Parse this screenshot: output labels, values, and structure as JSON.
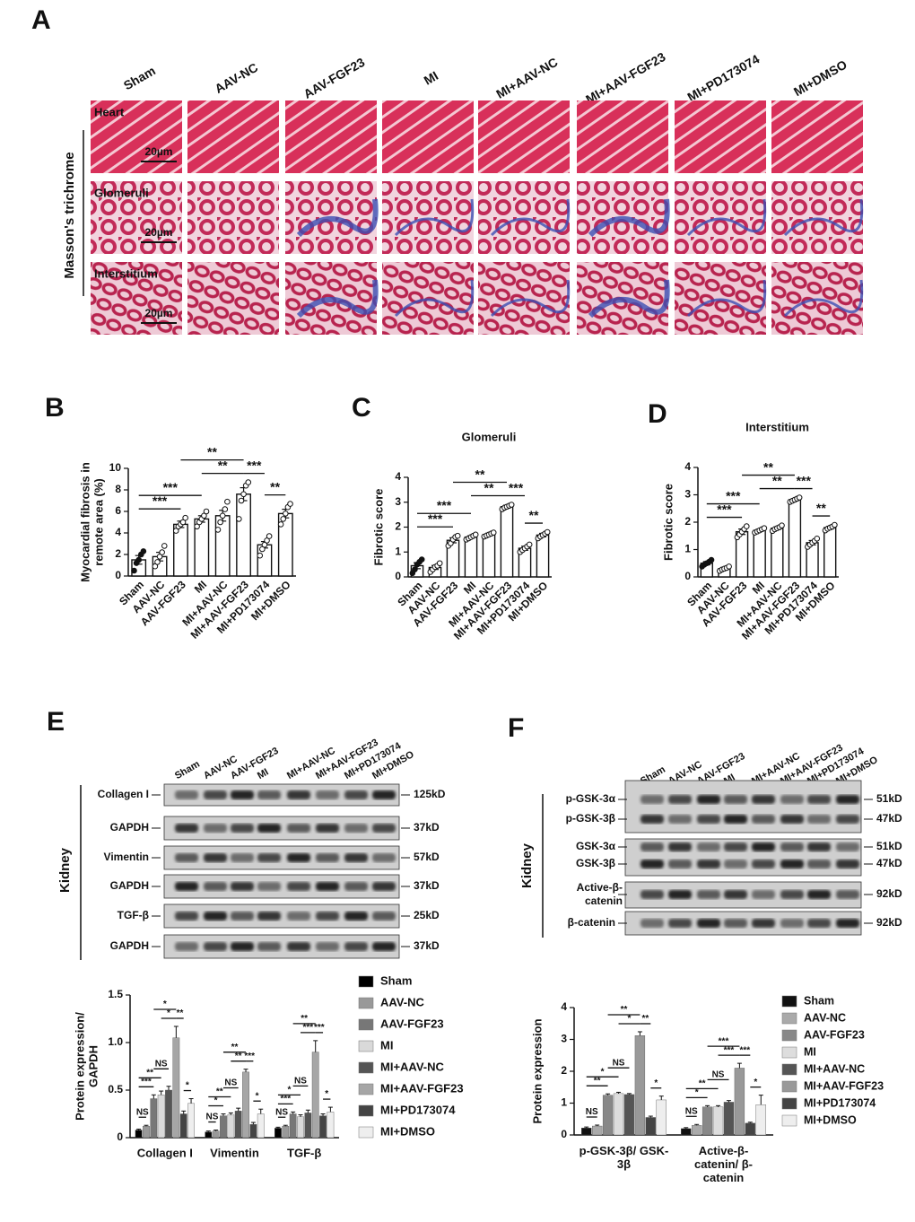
{
  "panel_labels": [
    "A",
    "B",
    "C",
    "D",
    "E",
    "F"
  ],
  "histology": {
    "groups": [
      "Sham",
      "AAV-NC",
      "AAV-FGF23",
      "MI",
      "MI+AAV-NC",
      "MI+AAV-FGF23",
      "MI+PD173074",
      "MI+DMSO"
    ],
    "rows": [
      "Heart",
      "Glomeruli",
      "Interstitium"
    ],
    "stain_label": "Masson's trichrome",
    "scale_bar": "20µm"
  },
  "blot_e": {
    "groups": [
      "Sham",
      "AAV-NC",
      "AAV-FGF23",
      "MI",
      "MI+AAV-NC",
      "MI+AAV-FGF23",
      "MI+PD173074",
      "MI+DMSO"
    ],
    "tissue": "Kidney",
    "rows": [
      {
        "name": "Collagen I",
        "size": "125kD"
      },
      {
        "name": "GAPDH",
        "size": "37kD"
      },
      {
        "name": "Vimentin",
        "size": "57kD"
      },
      {
        "name": "GAPDH",
        "size": "37kD"
      },
      {
        "name": "TGF-β",
        "size": "25kD"
      },
      {
        "name": "GAPDH",
        "size": "37kD"
      }
    ]
  },
  "blot_f": {
    "groups": [
      "Sham",
      "AAV-NC",
      "AAV-FGF23",
      "MI",
      "MI+AAV-NC",
      "MI+AAV-FGF23",
      "MI+PD173074",
      "MI+DMSO"
    ],
    "tissue": "Kidney",
    "rows": [
      {
        "name": "p-GSK-3α",
        "size": "51kD"
      },
      {
        "name": "p-GSK-3β",
        "size": "47kD"
      },
      {
        "name": "GSK-3α",
        "size": "51kD"
      },
      {
        "name": "GSK-3β",
        "size": "47kD"
      },
      {
        "name": "Active-β-catenin",
        "size": "92kD"
      },
      {
        "name": "β-catenin",
        "size": "92kD"
      }
    ]
  },
  "chart_data": [
    {
      "type": "bar",
      "ylabel": [
        "Myocardial fibrosis in",
        "remote area  (%)"
      ],
      "categories": [
        "Sham",
        "AAV-NC",
        "AAV-FGF23",
        "MI",
        "MI+AAV-NC",
        "MI+AAV-FGF23",
        "MI+PD173074",
        "MI+DMSO"
      ],
      "values": [
        1.5,
        1.8,
        4.8,
        5.3,
        5.6,
        7.6,
        2.9,
        5.8
      ],
      "errors": [
        0.4,
        0.4,
        0.3,
        0.3,
        0.5,
        0.6,
        0.3,
        0.4
      ],
      "points": [
        [
          0.5,
          1.2,
          1.5,
          2.0,
          2.3
        ],
        [
          0.9,
          1.3,
          1.8,
          2.2,
          2.8
        ],
        [
          4.2,
          4.6,
          4.8,
          5.0,
          5.4
        ],
        [
          4.6,
          5.0,
          5.3,
          5.6,
          6.0
        ],
        [
          4.3,
          5.0,
          5.6,
          6.2,
          6.9
        ],
        [
          5.3,
          7.0,
          7.6,
          8.4,
          8.7
        ],
        [
          1.9,
          2.5,
          2.9,
          3.3,
          3.7
        ],
        [
          4.8,
          5.3,
          5.8,
          6.4,
          6.7
        ]
      ],
      "ylim": [
        0,
        10
      ],
      "yticks": [
        0,
        2,
        4,
        6,
        8,
        10
      ],
      "comparisons": [
        {
          "groups": [
            "Sham",
            "AAV-FGF23"
          ],
          "label": "***"
        },
        {
          "groups": [
            "Sham",
            "MI"
          ],
          "label": "***"
        },
        {
          "groups": [
            "MI",
            "MI+AAV-FGF23"
          ],
          "label": "**"
        },
        {
          "groups": [
            "AAV-FGF23",
            "MI+AAV-FGF23"
          ],
          "label": "**"
        },
        {
          "groups": [
            "MI+AAV-FGF23",
            "MI+PD173074"
          ],
          "label": "***"
        },
        {
          "groups": [
            "MI+PD173074",
            "MI+DMSO"
          ],
          "label": "**"
        }
      ]
    },
    {
      "type": "bar",
      "title": "Glomeruli",
      "ylabel": [
        "Fibrotic score"
      ],
      "categories": [
        "Sham",
        "AAV-NC",
        "AAV-FGF23",
        "MI",
        "MI+AAV-NC",
        "MI+AAV-FGF23",
        "MI+PD173074",
        "MI+DMSO"
      ],
      "values": [
        0.45,
        0.38,
        1.47,
        1.6,
        1.7,
        2.82,
        1.15,
        1.68
      ],
      "errors": [
        0.12,
        0.08,
        0.1,
        0.05,
        0.05,
        0.06,
        0.08,
        0.07
      ],
      "points": [
        [
          0.15,
          0.3,
          0.5,
          0.6,
          0.7
        ],
        [
          0.2,
          0.3,
          0.4,
          0.45,
          0.55
        ],
        [
          1.25,
          1.35,
          1.5,
          1.6,
          1.65
        ],
        [
          1.5,
          1.55,
          1.6,
          1.65,
          1.7
        ],
        [
          1.62,
          1.66,
          1.7,
          1.74,
          1.78
        ],
        [
          2.72,
          2.78,
          2.82,
          2.86,
          2.9
        ],
        [
          1.0,
          1.08,
          1.15,
          1.22,
          1.3
        ],
        [
          1.55,
          1.62,
          1.68,
          1.74,
          1.8
        ]
      ],
      "ylim": [
        0,
        4
      ],
      "yticks": [
        0,
        1,
        2,
        3,
        4
      ],
      "comparisons": [
        {
          "groups": [
            "Sham",
            "AAV-FGF23"
          ],
          "label": "***"
        },
        {
          "groups": [
            "Sham",
            "MI"
          ],
          "label": "***"
        },
        {
          "groups": [
            "MI",
            "MI+AAV-FGF23"
          ],
          "label": "**"
        },
        {
          "groups": [
            "AAV-FGF23",
            "MI+AAV-FGF23"
          ],
          "label": "**"
        },
        {
          "groups": [
            "MI+AAV-FGF23",
            "MI+PD173074"
          ],
          "label": "***"
        },
        {
          "groups": [
            "MI+PD173074",
            "MI+DMSO"
          ],
          "label": "**"
        }
      ]
    },
    {
      "type": "bar",
      "title": "Interstitium",
      "ylabel": [
        "Fibrotic score"
      ],
      "categories": [
        "Sham",
        "AAV-NC",
        "AAV-FGF23",
        "MI",
        "MI+AAV-NC",
        "MI+AAV-FGF23",
        "MI+PD173074",
        "MI+DMSO"
      ],
      "values": [
        0.5,
        0.3,
        1.65,
        1.7,
        1.78,
        2.82,
        1.25,
        1.8
      ],
      "errors": [
        0.06,
        0.04,
        0.1,
        0.04,
        0.05,
        0.04,
        0.08,
        0.05
      ],
      "points": [
        [
          0.38,
          0.45,
          0.5,
          0.55,
          0.62
        ],
        [
          0.22,
          0.27,
          0.3,
          0.33,
          0.38
        ],
        [
          1.45,
          1.55,
          1.65,
          1.75,
          1.85
        ],
        [
          1.62,
          1.66,
          1.7,
          1.74,
          1.78
        ],
        [
          1.68,
          1.74,
          1.78,
          1.82,
          1.88
        ],
        [
          2.74,
          2.78,
          2.82,
          2.86,
          2.9
        ],
        [
          1.1,
          1.18,
          1.25,
          1.32,
          1.4
        ],
        [
          1.7,
          1.76,
          1.8,
          1.84,
          1.9
        ]
      ],
      "ylim": [
        0,
        4
      ],
      "yticks": [
        0,
        1,
        2,
        3,
        4
      ],
      "comparisons": [
        {
          "groups": [
            "Sham",
            "AAV-FGF23"
          ],
          "label": "***"
        },
        {
          "groups": [
            "Sham",
            "MI"
          ],
          "label": "***"
        },
        {
          "groups": [
            "MI",
            "MI+AAV-FGF23"
          ],
          "label": "**"
        },
        {
          "groups": [
            "AAV-FGF23",
            "MI+AAV-FGF23"
          ],
          "label": "**"
        },
        {
          "groups": [
            "MI+AAV-FGF23",
            "MI+PD173074"
          ],
          "label": "***"
        },
        {
          "groups": [
            "MI+PD173074",
            "MI+DMSO"
          ],
          "label": "**"
        }
      ]
    },
    {
      "type": "groupedbar",
      "ylabel": [
        "Protein expression/",
        "GAPDH"
      ],
      "categories": [
        "Collagen I",
        "Vimentin",
        "TGF-β"
      ],
      "series": [
        {
          "name": "Sham",
          "color": "#000000",
          "values": [
            0.08,
            0.06,
            0.1
          ],
          "errors": [
            0.01,
            0.01,
            0.01
          ]
        },
        {
          "name": "AAV-NC",
          "color": "#999999",
          "values": [
            0.12,
            0.07,
            0.12
          ],
          "errors": [
            0.01,
            0.01,
            0.01
          ]
        },
        {
          "name": "AAV-FGF23",
          "color": "#777777",
          "values": [
            0.41,
            0.23,
            0.25
          ],
          "errors": [
            0.04,
            0.02,
            0.02
          ]
        },
        {
          "name": "MI",
          "color": "#d9d9d9",
          "values": [
            0.45,
            0.24,
            0.22
          ],
          "errors": [
            0.04,
            0.02,
            0.02
          ]
        },
        {
          "name": "MI+AAV-NC",
          "color": "#555555",
          "values": [
            0.5,
            0.28,
            0.26
          ],
          "errors": [
            0.04,
            0.03,
            0.03
          ]
        },
        {
          "name": "MI+AAV-FGF23",
          "color": "#a6a6a6",
          "values": [
            1.05,
            0.69,
            0.9
          ],
          "errors": [
            0.12,
            0.03,
            0.12
          ]
        },
        {
          "name": "MI+PD173074",
          "color": "#444444",
          "values": [
            0.25,
            0.14,
            0.23
          ],
          "errors": [
            0.03,
            0.02,
            0.02
          ]
        },
        {
          "name": "MI+DMSO",
          "color": "#eeeeee",
          "values": [
            0.36,
            0.25,
            0.27
          ],
          "errors": [
            0.05,
            0.05,
            0.05
          ]
        }
      ],
      "ylim": [
        0,
        1.5
      ],
      "yticks": [
        0,
        0.5,
        {
          "value": 1,
          "label": "1.0"
        },
        1.5
      ],
      "legend": "right",
      "comparisons": [
        {
          "groups": [
            "Sham",
            "AAV-NC"
          ],
          "labels": [
            "NS",
            "NS",
            "NS"
          ]
        },
        {
          "groups": [
            "Sham",
            "AAV-FGF23"
          ],
          "labels": [
            "***",
            "*",
            "***"
          ]
        },
        {
          "groups": [
            "Sham",
            "MI"
          ],
          "labels": [
            "**",
            "**",
            "*"
          ]
        },
        {
          "groups": [
            "AAV-FGF23",
            "MI+AAV-NC"
          ],
          "labels": [
            "NS",
            "NS",
            "NS"
          ]
        },
        {
          "groups": [
            "MI",
            "MI+AAV-FGF23"
          ],
          "labels": [
            "*",
            "**",
            "***"
          ]
        },
        {
          "groups": [
            "AAV-FGF23",
            "MI+AAV-FGF23"
          ],
          "labels": [
            "*",
            "**",
            "**"
          ]
        },
        {
          "groups": [
            "MI+AAV-FGF23",
            "MI+PD173074"
          ],
          "labels": [
            "**",
            "***",
            "***"
          ]
        },
        {
          "groups": [
            "MI+PD173074",
            "MI+DMSO"
          ],
          "labels": [
            "*",
            "*",
            "*"
          ]
        }
      ]
    },
    {
      "type": "groupedbar",
      "ylabel": [
        "Protein expression"
      ],
      "categories": [
        "p-GSK-3β/ GSK-3β",
        "Active-β-catenin/ β-catenin"
      ],
      "series": [
        {
          "name": "Sham",
          "color": "#111111",
          "values": [
            0.22,
            0.2
          ],
          "errors": [
            0.03,
            0.03
          ]
        },
        {
          "name": "AAV-NC",
          "color": "#aaaaaa",
          "values": [
            0.28,
            0.3
          ],
          "errors": [
            0.03,
            0.03
          ]
        },
        {
          "name": "AAV-FGF23",
          "color": "#888888",
          "values": [
            1.25,
            0.88
          ],
          "errors": [
            0.04,
            0.04
          ]
        },
        {
          "name": "MI",
          "color": "#dddddd",
          "values": [
            1.3,
            0.88
          ],
          "errors": [
            0.04,
            0.04
          ]
        },
        {
          "name": "MI+AAV-NC",
          "color": "#555555",
          "values": [
            1.27,
            1.03
          ],
          "errors": [
            0.03,
            0.05
          ]
        },
        {
          "name": "MI+AAV-FGF23",
          "color": "#999999",
          "values": [
            3.12,
            2.1
          ],
          "errors": [
            0.12,
            0.15
          ]
        },
        {
          "name": "MI+PD173074",
          "color": "#444444",
          "values": [
            0.55,
            0.37
          ],
          "errors": [
            0.04,
            0.03
          ]
        },
        {
          "name": "MI+DMSO",
          "color": "#eeeeee",
          "values": [
            1.1,
            0.95
          ],
          "errors": [
            0.12,
            0.3
          ]
        }
      ],
      "ylim": [
        0,
        4
      ],
      "yticks": [
        0,
        1,
        2,
        3,
        4
      ],
      "legend": "right",
      "comparisons": [
        {
          "groups": [
            "Sham",
            "AAV-NC"
          ],
          "labels": [
            "NS",
            "NS"
          ]
        },
        {
          "groups": [
            "Sham",
            "AAV-FGF23"
          ],
          "labels": [
            "**",
            "*"
          ]
        },
        {
          "groups": [
            "Sham",
            "MI"
          ],
          "labels": [
            "*",
            "**"
          ]
        },
        {
          "groups": [
            "AAV-FGF23",
            "MI+AAV-NC"
          ],
          "labels": [
            "NS",
            "NS"
          ]
        },
        {
          "groups": [
            "MI",
            "MI+AAV-FGF23"
          ],
          "labels": [
            "*",
            "***"
          ]
        },
        {
          "groups": [
            "AAV-FGF23",
            "MI+AAV-FGF23"
          ],
          "labels": [
            "**",
            "***"
          ]
        },
        {
          "groups": [
            "MI+AAV-FGF23",
            "MI+PD173074"
          ],
          "labels": [
            "**",
            "***"
          ]
        },
        {
          "groups": [
            "MI+PD173074",
            "MI+DMSO"
          ],
          "labels": [
            "*",
            "*"
          ]
        }
      ]
    }
  ]
}
